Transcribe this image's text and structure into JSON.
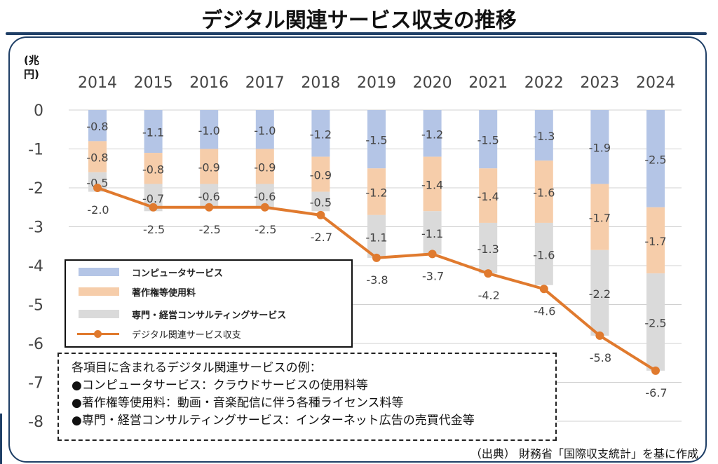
{
  "title": "デジタル関連サービス収支の推移",
  "unit_label": "(兆\n円)",
  "colors": {
    "computer": "#b4c5e6",
    "copyright": "#f6cdaa",
    "consulting": "#dadada",
    "line": "#e07a2e",
    "frame": "#1f3f66"
  },
  "legend": {
    "computer": "コンピュータサービス",
    "copyright": "著作権等使用料",
    "consulting": "専門・経営コンサルティングサービス",
    "total": "デジタル関連サービス収支"
  },
  "examples": {
    "heading": "各項目に含まれるデジタル関連サービスの例：",
    "items": [
      "●コンピュータサービス：クラウドサービスの使用料等",
      "●著作権等使用料：動画・音楽配信に伴う各種ライセンス料等",
      "●専門・経営コンサルティングサービス：インターネット広告の売買代金等"
    ]
  },
  "source": "（出典） 財務省「国際収支統計」を基に作成",
  "chart_data": {
    "type": "bar",
    "stacked": true,
    "categories": [
      "2014",
      "2015",
      "2016",
      "2017",
      "2018",
      "2019",
      "2020",
      "2021",
      "2022",
      "2023",
      "2024"
    ],
    "ylim": [
      -8,
      0
    ],
    "yticks": [
      "0",
      "-1",
      "-2",
      "-3",
      "-4",
      "-5",
      "-6",
      "-7",
      "-8"
    ],
    "grid": true,
    "legend_position": "bottom-left",
    "series": [
      {
        "name": "コンピュータサービス",
        "key": "computer",
        "values": [
          -0.8,
          -1.1,
          -1.0,
          -1.0,
          -1.2,
          -1.5,
          -1.2,
          -1.5,
          -1.3,
          -1.9,
          -2.5
        ],
        "labels": [
          "-0.8",
          "-1.1",
          "-1.0",
          "-1.0",
          "-1.2",
          "-1.5",
          "-1.2",
          "-1.5",
          "-1.3",
          "-1.9",
          "-2.5"
        ]
      },
      {
        "name": "著作権等使用料",
        "key": "copyright",
        "values": [
          -0.8,
          -0.8,
          -0.9,
          -0.9,
          -0.9,
          -1.2,
          -1.4,
          -1.4,
          -1.6,
          -1.7,
          -1.7
        ],
        "labels": [
          "-0.8",
          "-0.8",
          "-0.9",
          "-0.9",
          "-0.9",
          "-1.2",
          "-1.4",
          "-1.4",
          "-1.6",
          "-1.7",
          "-1.7"
        ]
      },
      {
        "name": "専門・経営コンサルティングサービス",
        "key": "consulting",
        "values": [
          -0.5,
          -0.7,
          -0.6,
          -0.6,
          -0.5,
          -1.1,
          -1.1,
          -1.3,
          -1.6,
          -2.2,
          -2.5
        ],
        "labels": [
          "-0.5",
          "-0.7",
          "-0.6",
          "-0.6",
          "-0.5",
          "-1.1",
          "-1.1",
          "-1.3",
          "-1.6",
          "-2.2",
          "-2.5"
        ]
      }
    ],
    "line": {
      "name": "デジタル関連サービス収支",
      "values": [
        -2.0,
        -2.5,
        -2.5,
        -2.5,
        -2.7,
        -3.8,
        -3.7,
        -4.2,
        -4.6,
        -5.8,
        -6.7
      ],
      "labels": [
        "-2.0",
        "-2.5",
        "-2.5",
        "-2.5",
        "-2.7",
        "-3.8",
        "-3.7",
        "-4.2",
        "-4.6",
        "-5.8",
        "-6.7"
      ]
    }
  }
}
